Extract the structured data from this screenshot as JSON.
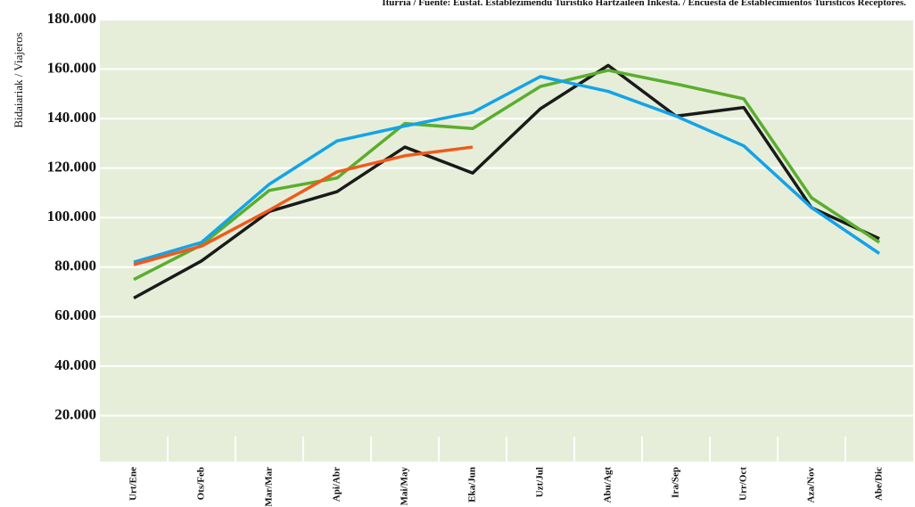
{
  "chart_data": {
    "type": "line",
    "title": "Iturria / Fuente: Eustat. Establezimendu Turistiko Hartzaileen Inkesta. / Encuesta de Establecimientos Turísticos Receptores.",
    "y_label": "Bidaiariak / Viajeros",
    "categories": [
      "Urt/Ene",
      "Ots/Feb",
      "Mar/Mar",
      "Api/Abr",
      "Mai/May",
      "Eka/Jun",
      "Uzt/Jul",
      "Abu/Agt",
      "Ira/Sep",
      "Urr/Oct",
      "Aza/Nov",
      "Abe/Dic"
    ],
    "series": [
      {
        "color": "#1a1a1a",
        "values": [
          67500,
          82500,
          102500,
          110500,
          128500,
          118000,
          144000,
          161500,
          141000,
          144500,
          104000,
          91500
        ]
      },
      {
        "color": "#5aae2e",
        "values": [
          75000,
          89000,
          111000,
          116000,
          138000,
          136000,
          153000,
          159500,
          154000,
          148000,
          108000,
          90000
        ]
      },
      {
        "color": "#14a3e8",
        "values": [
          82000,
          90000,
          113500,
          131000,
          137000,
          142500,
          157000,
          151000,
          141000,
          129000,
          104000,
          85500
        ]
      },
      {
        "color": "#f05a1a",
        "values": [
          81000,
          88500,
          103000,
          118500,
          125000,
          128500,
          null,
          null,
          null,
          null,
          null,
          null
        ]
      }
    ],
    "ylim": [
      0,
      180000
    ],
    "yticks": [
      {
        "value": 20000,
        "label": "20.000"
      },
      {
        "value": 40000,
        "label": "40.000"
      },
      {
        "value": 60000,
        "label": "60.000"
      },
      {
        "value": 80000,
        "label": "80.000"
      },
      {
        "value": 100000,
        "label": "100.000"
      },
      {
        "value": 120000,
        "label": "120.000"
      },
      {
        "value": 140000,
        "label": "140.000"
      },
      {
        "value": 160000,
        "label": "160.000"
      },
      {
        "value": 180000,
        "label": "180.000"
      }
    ],
    "grid": true
  }
}
